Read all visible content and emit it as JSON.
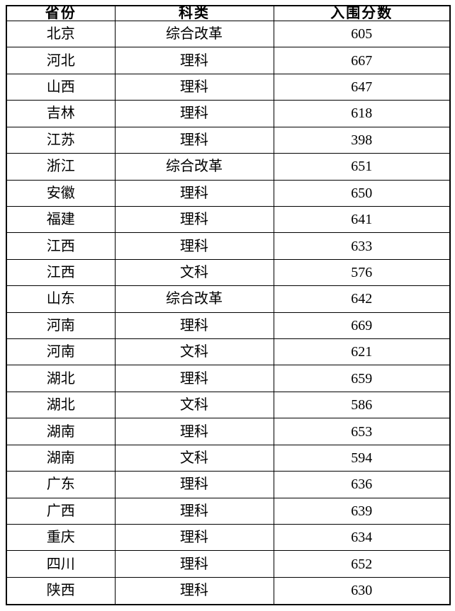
{
  "table": {
    "headers": [
      "省份",
      "科类",
      "入围分数"
    ],
    "rows": [
      {
        "province": "北京",
        "category": "综合改革",
        "score": "605"
      },
      {
        "province": "河北",
        "category": "理科",
        "score": "667"
      },
      {
        "province": "山西",
        "category": "理科",
        "score": "647"
      },
      {
        "province": "吉林",
        "category": "理科",
        "score": "618"
      },
      {
        "province": "江苏",
        "category": "理科",
        "score": "398"
      },
      {
        "province": "浙江",
        "category": "综合改革",
        "score": "651"
      },
      {
        "province": "安徽",
        "category": "理科",
        "score": "650"
      },
      {
        "province": "福建",
        "category": "理科",
        "score": "641"
      },
      {
        "province": "江西",
        "category": "理科",
        "score": "633"
      },
      {
        "province": "江西",
        "category": "文科",
        "score": "576"
      },
      {
        "province": "山东",
        "category": "综合改革",
        "score": "642"
      },
      {
        "province": "河南",
        "category": "理科",
        "score": "669"
      },
      {
        "province": "河南",
        "category": "文科",
        "score": "621"
      },
      {
        "province": "湖北",
        "category": "理科",
        "score": "659"
      },
      {
        "province": "湖北",
        "category": "文科",
        "score": "586"
      },
      {
        "province": "湖南",
        "category": "理科",
        "score": "653"
      },
      {
        "province": "湖南",
        "category": "文科",
        "score": "594"
      },
      {
        "province": "广东",
        "category": "理科",
        "score": "636"
      },
      {
        "province": "广西",
        "category": "理科",
        "score": "639"
      },
      {
        "province": "重庆",
        "category": "理科",
        "score": "634"
      },
      {
        "province": "四川",
        "category": "理科",
        "score": "652"
      },
      {
        "province": "陕西",
        "category": "理科",
        "score": "630"
      }
    ],
    "colors": {
      "border": "#000000",
      "text": "#000000",
      "background": "#ffffff"
    }
  }
}
